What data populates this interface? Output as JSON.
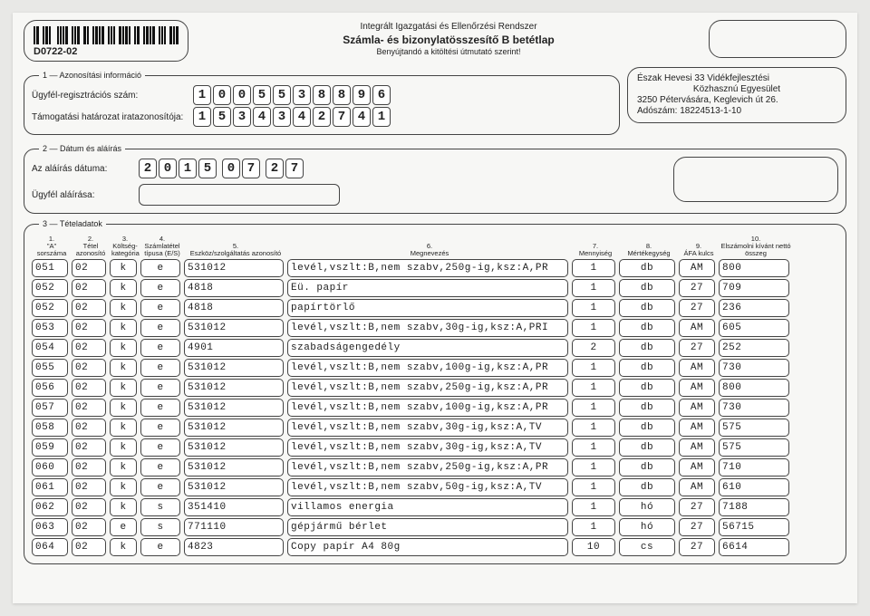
{
  "form": {
    "code": "D0722-02",
    "title1": "Integrált Igazgatási és Ellenőrzési Rendszer",
    "title2": "Számla- és bizonylatösszesítő B betétlap",
    "title3": "Benyújtandó a kitöltési útmutató szerint!"
  },
  "section1": {
    "legend": "1 — Azonosítási információ",
    "reg_label": "Ügyfél-regisztrációs szám:",
    "reg_value": [
      "1",
      "0",
      "0",
      "5",
      "5",
      "3",
      "8",
      "8",
      "9",
      "6"
    ],
    "supp_label": "Támogatási határozat iratazonosítója:",
    "supp_value": [
      "1",
      "5",
      "3",
      "4",
      "3",
      "4",
      "2",
      "7",
      "4",
      "1"
    ]
  },
  "org": {
    "l1": "Észak Hevesi 33 Vidékfejlesztési",
    "l2": "Közhasznú Egyesület",
    "l3": "3250 Pétervására, Keglevich út 26.",
    "l4": "Adószám: 18224513-1-10"
  },
  "section2": {
    "legend": "2 — Dátum és aláírás",
    "date_label": "Az aláírás dátuma:",
    "date_y": [
      "2",
      "0",
      "1",
      "5"
    ],
    "date_m": [
      "0",
      "7"
    ],
    "date_d": [
      "2",
      "7"
    ],
    "sig_label": "Ügyfél aláírása:"
  },
  "section3": {
    "legend": "3 — Tételadatok",
    "headers": {
      "c1a": "1.",
      "c1b": "\"A\" sorszáma",
      "c2a": "2.",
      "c2b": "Tétel azonosító",
      "c3a": "3.",
      "c3b": "Költség- kategória",
      "c4a": "4.",
      "c4b": "Számlatétel típusa (E/S)",
      "c5a": "5.",
      "c5b": "Eszköz/szolgáltatás azonosító",
      "c6a": "6.",
      "c6b": "Megnevezés",
      "c7a": "7.",
      "c7b": "Mennyiség",
      "c8a": "8.",
      "c8b": "Mértékegység",
      "c9a": "9.",
      "c9b": "ÁFA kulcs",
      "c10a": "10.",
      "c10b": "Elszámolni kívánt nettó összeg"
    },
    "rows": [
      {
        "a": "051",
        "t": "02",
        "k": "k",
        "s": "e",
        "id": "531012",
        "desc": "levél,vszlt:B,nem szabv,250g-ig,ksz:A,PR",
        "q": "1",
        "u": "db",
        "afa": "AM",
        "net": "800"
      },
      {
        "a": "052",
        "t": "02",
        "k": "k",
        "s": "e",
        "id": "4818",
        "desc": "Eü. papír",
        "q": "1",
        "u": "db",
        "afa": "27",
        "net": "709"
      },
      {
        "a": "052",
        "t": "02",
        "k": "k",
        "s": "e",
        "id": "4818",
        "desc": "papírtörlő",
        "q": "1",
        "u": "db",
        "afa": "27",
        "net": "236"
      },
      {
        "a": "053",
        "t": "02",
        "k": "k",
        "s": "e",
        "id": "531012",
        "desc": "levél,vszlt:B,nem szabv,30g-ig,ksz:A,PRI",
        "q": "1",
        "u": "db",
        "afa": "AM",
        "net": "605"
      },
      {
        "a": "054",
        "t": "02",
        "k": "k",
        "s": "e",
        "id": "4901",
        "desc": "szabadságengedély",
        "q": "2",
        "u": "db",
        "afa": "27",
        "net": "252"
      },
      {
        "a": "055",
        "t": "02",
        "k": "k",
        "s": "e",
        "id": "531012",
        "desc": "levél,vszlt:B,nem szabv,100g-ig,ksz:A,PR",
        "q": "1",
        "u": "db",
        "afa": "AM",
        "net": "730"
      },
      {
        "a": "056",
        "t": "02",
        "k": "k",
        "s": "e",
        "id": "531012",
        "desc": "levél,vszlt:B,nem szabv,250g-ig,ksz:A,PR",
        "q": "1",
        "u": "db",
        "afa": "AM",
        "net": "800"
      },
      {
        "a": "057",
        "t": "02",
        "k": "k",
        "s": "e",
        "id": "531012",
        "desc": "levél,vszlt:B,nem szabv,100g-ig,ksz:A,PR",
        "q": "1",
        "u": "db",
        "afa": "AM",
        "net": "730"
      },
      {
        "a": "058",
        "t": "02",
        "k": "k",
        "s": "e",
        "id": "531012",
        "desc": "levél,vszlt:B,nem szabv,30g-ig,ksz:A,TV",
        "q": "1",
        "u": "db",
        "afa": "AM",
        "net": "575"
      },
      {
        "a": "059",
        "t": "02",
        "k": "k",
        "s": "e",
        "id": "531012",
        "desc": "levél,vszlt:B,nem szabv,30g-ig,ksz:A,TV",
        "q": "1",
        "u": "db",
        "afa": "AM",
        "net": "575"
      },
      {
        "a": "060",
        "t": "02",
        "k": "k",
        "s": "e",
        "id": "531012",
        "desc": "levél,vszlt:B,nem szabv,250g-ig,ksz:A,PR",
        "q": "1",
        "u": "db",
        "afa": "AM",
        "net": "710"
      },
      {
        "a": "061",
        "t": "02",
        "k": "k",
        "s": "e",
        "id": "531012",
        "desc": "levél,vszlt:B,nem szabv,50g-ig,ksz:A,TV",
        "q": "1",
        "u": "db",
        "afa": "AM",
        "net": "610"
      },
      {
        "a": "062",
        "t": "02",
        "k": "k",
        "s": "s",
        "id": "351410",
        "desc": "villamos energia",
        "q": "1",
        "u": "hó",
        "afa": "27",
        "net": "7188"
      },
      {
        "a": "063",
        "t": "02",
        "k": "e",
        "s": "s",
        "id": "771110",
        "desc": "gépjármű bérlet",
        "q": "1",
        "u": "hó",
        "afa": "27",
        "net": "56715"
      },
      {
        "a": "064",
        "t": "02",
        "k": "k",
        "s": "e",
        "id": "4823",
        "desc": "Copy papír A4 80g",
        "q": "10",
        "u": "cs",
        "afa": "27",
        "net": "6614"
      }
    ]
  },
  "style": {
    "border_color": "#444444",
    "bg": "#f7f7f5",
    "font_mono": "Courier New"
  }
}
